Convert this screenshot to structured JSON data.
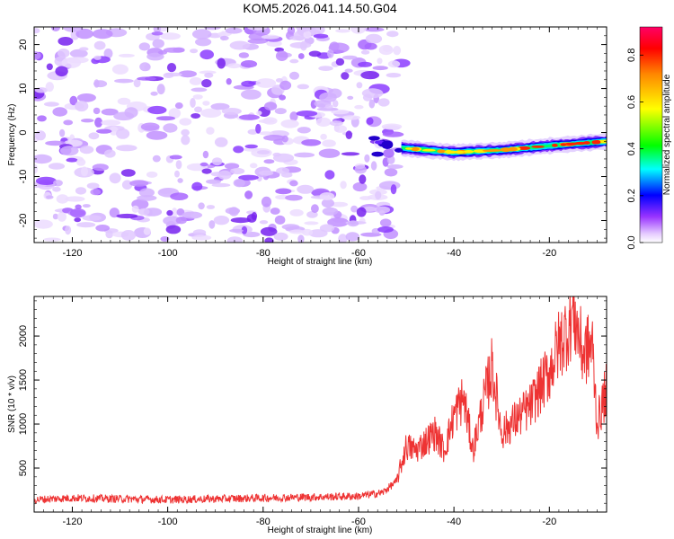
{
  "chart_data": [
    {
      "type": "heatmap",
      "title": "KOM5.2026.041.14.50.G04",
      "xlabel": "Height of straight line (km)",
      "ylabel": "Frequency (Hz)",
      "xlim": [
        -128,
        -8
      ],
      "ylim": [
        -25,
        24
      ],
      "xticks": [
        -120,
        -100,
        -80,
        -60,
        -40,
        -20
      ],
      "yticks": [
        -20,
        -10,
        0,
        10,
        20
      ],
      "noise_region_x": [
        -128,
        -51
      ],
      "signal_line": [
        {
          "x": -51,
          "y": -3.5
        },
        {
          "x": -40,
          "y": -4.5
        },
        {
          "x": -30,
          "y": -4.0
        },
        {
          "x": -20,
          "y": -3.0
        },
        {
          "x": -8,
          "y": -2.0
        }
      ],
      "colorbar": {
        "label": "Normalized spectral amplitude",
        "range": [
          0.0,
          0.92
        ],
        "ticks": [
          "0.0",
          "0.2",
          "0.4",
          "0.6",
          "0.8"
        ]
      }
    },
    {
      "type": "line",
      "xlabel": "Height of straight line (km)",
      "ylabel": "SNR (10 * v/v)",
      "xlim": [
        -128,
        -8
      ],
      "ylim": [
        0,
        2450
      ],
      "xticks": [
        -120,
        -100,
        -80,
        -60,
        -40,
        -20
      ],
      "yticks": [
        500,
        1000,
        1500,
        2000
      ],
      "series": [
        {
          "name": "SNR",
          "color": "#ee3333",
          "points": [
            {
              "x": -128,
              "y": 140
            },
            {
              "x": -120,
              "y": 160
            },
            {
              "x": -110,
              "y": 150
            },
            {
              "x": -100,
              "y": 140
            },
            {
              "x": -90,
              "y": 150
            },
            {
              "x": -80,
              "y": 160
            },
            {
              "x": -70,
              "y": 170
            },
            {
              "x": -60,
              "y": 180
            },
            {
              "x": -55,
              "y": 220
            },
            {
              "x": -52,
              "y": 350
            },
            {
              "x": -50,
              "y": 750
            },
            {
              "x": -48,
              "y": 700
            },
            {
              "x": -46,
              "y": 800
            },
            {
              "x": -44,
              "y": 900
            },
            {
              "x": -42,
              "y": 700
            },
            {
              "x": -40,
              "y": 1100
            },
            {
              "x": -38,
              "y": 1300
            },
            {
              "x": -36,
              "y": 700
            },
            {
              "x": -34,
              "y": 1200
            },
            {
              "x": -32,
              "y": 1650
            },
            {
              "x": -30,
              "y": 900
            },
            {
              "x": -28,
              "y": 1000
            },
            {
              "x": -26,
              "y": 1100
            },
            {
              "x": -24,
              "y": 1200
            },
            {
              "x": -22,
              "y": 1400
            },
            {
              "x": -20,
              "y": 1600
            },
            {
              "x": -18,
              "y": 1900
            },
            {
              "x": -16,
              "y": 2100
            },
            {
              "x": -15,
              "y": 2300
            },
            {
              "x": -13,
              "y": 1800
            },
            {
              "x": -11,
              "y": 1900
            },
            {
              "x": -10,
              "y": 1000
            },
            {
              "x": -8,
              "y": 1400
            }
          ]
        }
      ]
    }
  ]
}
